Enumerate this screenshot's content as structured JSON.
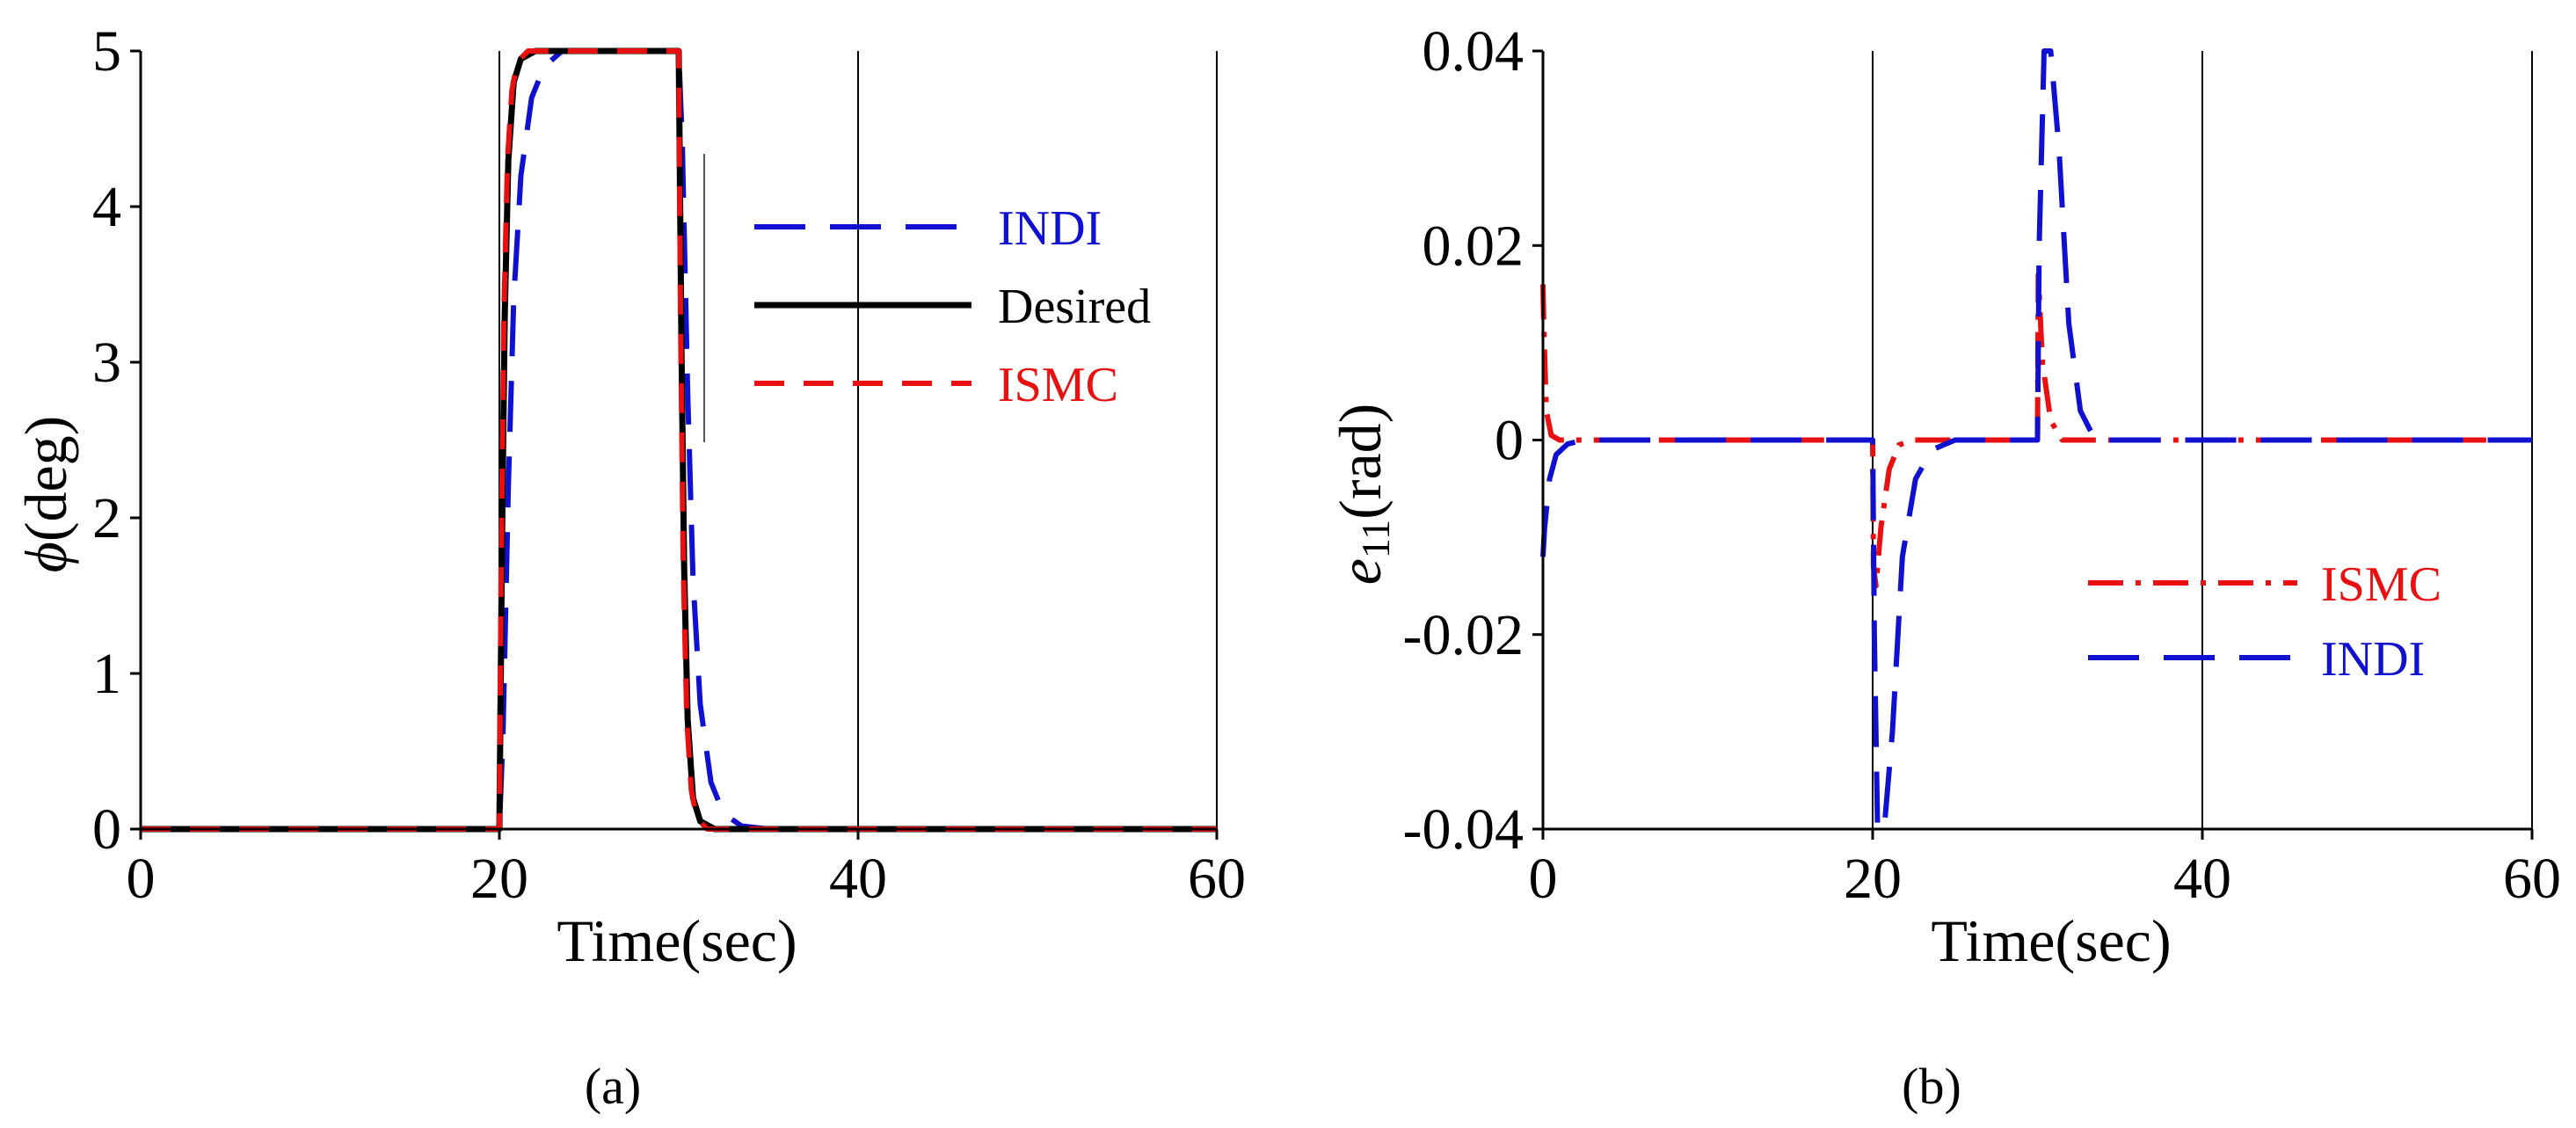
{
  "chart_data": [
    {
      "type": "line",
      "panel_label": "(a)",
      "xlabel": "Time(sec)",
      "ylabel_symbol": "ϕ",
      "ylabel_unit": "(deg)",
      "xlim": [
        0,
        60
      ],
      "ylim": [
        0,
        5
      ],
      "x_ticks": [
        0,
        20,
        40,
        60
      ],
      "x_tick_labels": [
        "0",
        "20",
        "40",
        "60"
      ],
      "y_ticks": [
        0,
        1,
        2,
        3,
        4,
        5
      ],
      "y_tick_labels": [
        "0",
        "1",
        "2",
        "3",
        "4",
        "5"
      ],
      "legend_position": "right",
      "series": [
        {
          "name": "INDI",
          "color": "#1010d0",
          "style": "long-dash",
          "x": [
            0,
            20,
            20.2,
            20.5,
            20.8,
            21.2,
            21.8,
            22.5,
            23.5,
            30,
            30.2,
            30.5,
            30.8,
            31.2,
            31.8,
            32.5,
            33.5,
            35,
            60
          ],
          "y": [
            0,
            0,
            0.6,
            2.2,
            3.4,
            4.2,
            4.7,
            4.9,
            5.0,
            5.0,
            4.4,
            2.8,
            1.6,
            0.8,
            0.3,
            0.1,
            0.02,
            0,
            0
          ]
        },
        {
          "name": "Desired",
          "color": "#000000",
          "style": "solid",
          "x": [
            0,
            20,
            20.15,
            20.3,
            20.5,
            20.8,
            21.2,
            22,
            30,
            30.15,
            30.3,
            30.5,
            30.8,
            31.2,
            32,
            60
          ],
          "y": [
            0,
            0,
            1.9,
            3.3,
            4.3,
            4.8,
            4.95,
            5.0,
            5.0,
            3.1,
            1.7,
            0.7,
            0.2,
            0.05,
            0,
            0
          ]
        },
        {
          "name": "ISMC",
          "color": "#e81010",
          "style": "dash",
          "x": [
            0,
            20,
            20.1,
            20.25,
            20.45,
            20.7,
            21.0,
            21.6,
            30,
            30.1,
            30.25,
            30.45,
            30.7,
            31.0,
            31.6,
            60
          ],
          "y": [
            0,
            0,
            1.7,
            3.3,
            4.3,
            4.75,
            4.93,
            5.0,
            5.0,
            3.3,
            1.7,
            0.7,
            0.25,
            0.07,
            0,
            0
          ]
        }
      ]
    },
    {
      "type": "line",
      "panel_label": "(b)",
      "xlabel": "Time(sec)",
      "ylabel_symbol": "e",
      "ylabel_sub": "11",
      "ylabel_unit": "(rad)",
      "xlim": [
        0,
        60
      ],
      "ylim": [
        -0.04,
        0.04
      ],
      "x_ticks": [
        0,
        20,
        40,
        60
      ],
      "x_tick_labels": [
        "0",
        "20",
        "40",
        "60"
      ],
      "y_ticks": [
        -0.04,
        -0.02,
        0,
        0.02,
        0.04
      ],
      "y_tick_labels": [
        "-0.04",
        "-0.02",
        "0",
        "0.02",
        "0.04"
      ],
      "legend_position": "lower-right",
      "series": [
        {
          "name": "ISMC",
          "color": "#e81010",
          "style": "dash-dot",
          "x": [
            0,
            0.05,
            0.2,
            0.5,
            1,
            20,
            20.05,
            20.2,
            20.5,
            21,
            21.6,
            22.5,
            30,
            30.05,
            30.3,
            30.8,
            31.5,
            60
          ],
          "y": [
            0.016,
            0.012,
            0.003,
            0.0005,
            0,
            0,
            -0.013,
            -0.015,
            -0.009,
            -0.003,
            -0.0005,
            0,
            0,
            0.017,
            0.008,
            0.002,
            0,
            0
          ]
        },
        {
          "name": "INDI",
          "color": "#1010d0",
          "style": "long-dash",
          "x": [
            0,
            0.1,
            0.4,
            0.8,
            1.5,
            2.5,
            20,
            20.1,
            20.3,
            20.7,
            21.2,
            21.8,
            22.6,
            23.6,
            25,
            30,
            30.1,
            30.4,
            30.8,
            31.3,
            31.9,
            32.6,
            33.5,
            60
          ],
          "y": [
            -0.012,
            -0.009,
            -0.004,
            -0.0015,
            -0.0004,
            0,
            0,
            -0.02,
            -0.04,
            -0.04,
            -0.03,
            -0.012,
            -0.004,
            -0.001,
            0,
            0,
            0.02,
            0.04,
            0.04,
            0.03,
            0.012,
            0.003,
            0,
            0
          ]
        }
      ]
    }
  ]
}
